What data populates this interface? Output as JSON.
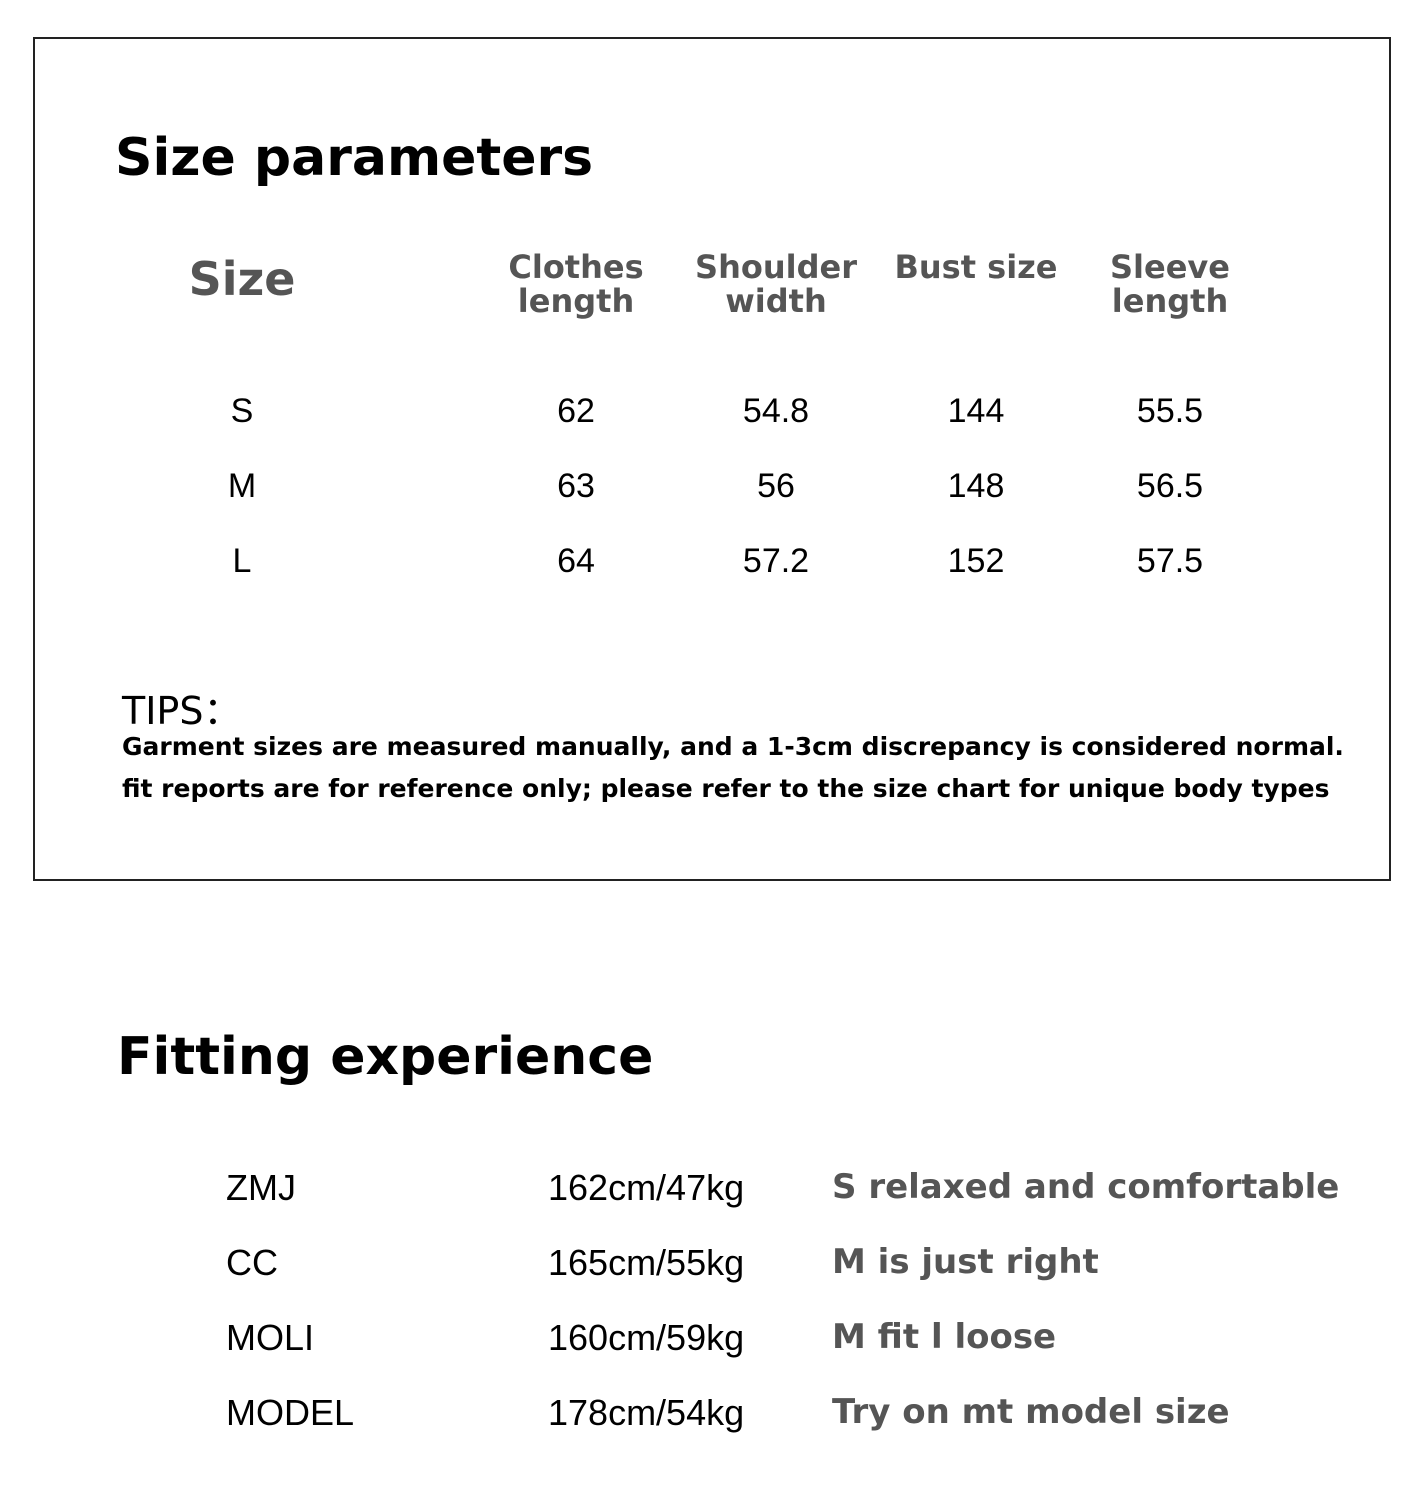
{
  "size_table": {
    "title": "Size parameters",
    "headers": [
      "Size",
      "Clothes length",
      "Shoulder width",
      "Bust size",
      "Sleeve length"
    ],
    "rows": [
      [
        "S",
        "62",
        "54.8",
        "144",
        "55.5"
      ],
      [
        "M",
        "63",
        "56",
        "148",
        "56.5"
      ],
      [
        "L",
        "64",
        "57.2",
        "152",
        "57.5"
      ]
    ],
    "tips_title": "TIPS：",
    "tips": [
      "Garment sizes are measured manually, and a 1-3cm discrepancy is considered normal.",
      "fit reports are for reference only; please refer to the size chart for unique body types"
    ]
  },
  "fitting": {
    "title": "Fitting experience",
    "rows": [
      [
        "ZMJ",
        "162cm/47kg",
        "S relaxed and comfortable"
      ],
      [
        "CC",
        "165cm/55kg",
        "M is just right"
      ],
      [
        "MOLI",
        "160cm/59kg",
        "M fit l loose"
      ],
      [
        "MODEL",
        "178cm/54kg",
        "Try on mt model size"
      ]
    ]
  }
}
